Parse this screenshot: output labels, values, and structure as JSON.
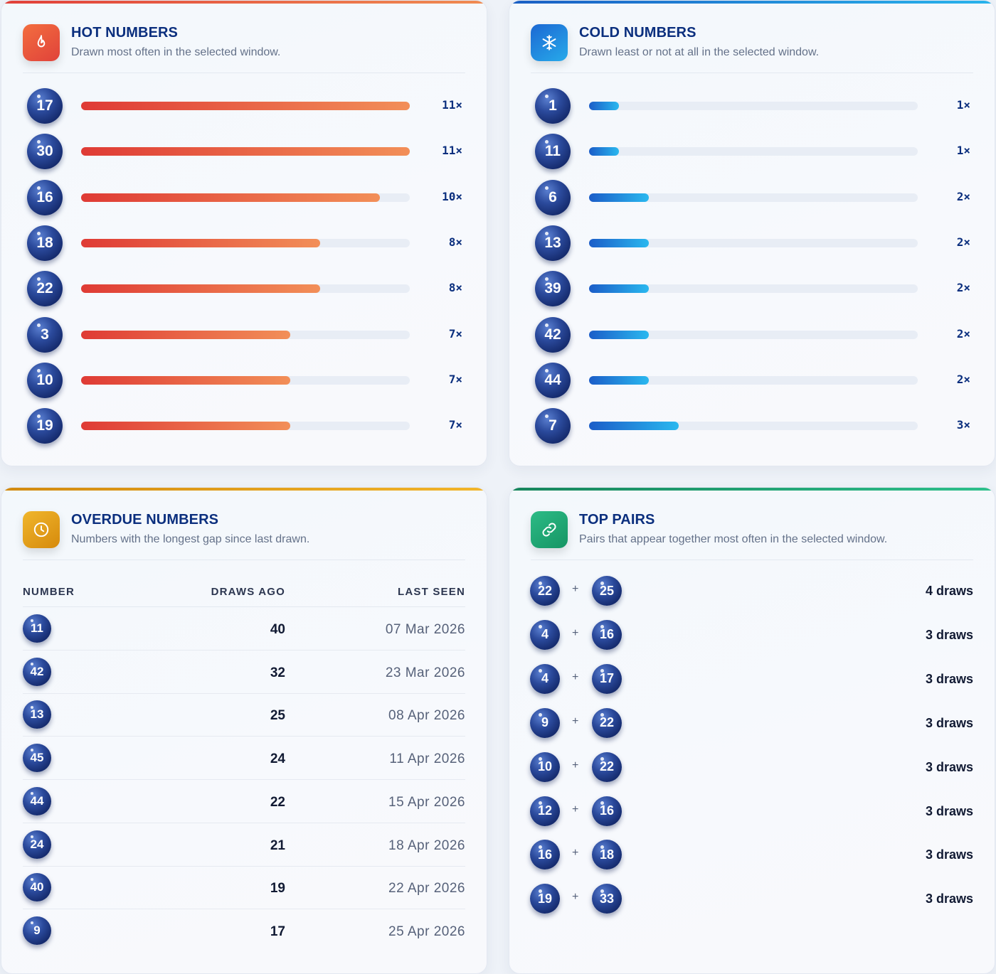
{
  "hot": {
    "title": "HOT NUMBERS",
    "subtitle": "Drawn most often in the selected window.",
    "icon": "flame-icon",
    "accent": "#e2473a",
    "max_count": 11,
    "rows": [
      {
        "number": "17",
        "count": 11,
        "label": "11×"
      },
      {
        "number": "30",
        "count": 11,
        "label": "11×"
      },
      {
        "number": "16",
        "count": 10,
        "label": "10×"
      },
      {
        "number": "18",
        "count": 8,
        "label": "8×"
      },
      {
        "number": "22",
        "count": 8,
        "label": "8×"
      },
      {
        "number": "3",
        "count": 7,
        "label": "7×"
      },
      {
        "number": "10",
        "count": 7,
        "label": "7×"
      },
      {
        "number": "19",
        "count": 7,
        "label": "7×"
      }
    ]
  },
  "cold": {
    "title": "COLD NUMBERS",
    "subtitle": "Drawn least or not at all in the selected window.",
    "icon": "snowflake-icon",
    "accent": "#1f78d8",
    "max_count": 11,
    "rows": [
      {
        "number": "1",
        "count": 1,
        "label": "1×"
      },
      {
        "number": "11",
        "count": 1,
        "label": "1×"
      },
      {
        "number": "6",
        "count": 2,
        "label": "2×"
      },
      {
        "number": "13",
        "count": 2,
        "label": "2×"
      },
      {
        "number": "39",
        "count": 2,
        "label": "2×"
      },
      {
        "number": "42",
        "count": 2,
        "label": "2×"
      },
      {
        "number": "44",
        "count": 2,
        "label": "2×"
      },
      {
        "number": "7",
        "count": 3,
        "label": "3×"
      }
    ]
  },
  "overdue": {
    "title": "OVERDUE NUMBERS",
    "subtitle": "Numbers with the longest gap since last drawn.",
    "icon": "clock-icon",
    "accent": "#e0a11c",
    "columns": [
      "NUMBER",
      "DRAWS AGO",
      "LAST SEEN"
    ],
    "rows": [
      {
        "number": "11",
        "draws_ago": "40",
        "last_seen": "07 Mar 2026"
      },
      {
        "number": "42",
        "draws_ago": "32",
        "last_seen": "23 Mar 2026"
      },
      {
        "number": "13",
        "draws_ago": "25",
        "last_seen": "08 Apr 2026"
      },
      {
        "number": "45",
        "draws_ago": "24",
        "last_seen": "11 Apr 2026"
      },
      {
        "number": "44",
        "draws_ago": "22",
        "last_seen": "15 Apr 2026"
      },
      {
        "number": "24",
        "draws_ago": "21",
        "last_seen": "18 Apr 2026"
      },
      {
        "number": "40",
        "draws_ago": "19",
        "last_seen": "22 Apr 2026"
      },
      {
        "number": "9",
        "draws_ago": "17",
        "last_seen": "25 Apr 2026"
      }
    ]
  },
  "pairs": {
    "title": "TOP PAIRS",
    "subtitle": "Pairs that appear together most often in the selected window.",
    "icon": "link-icon",
    "accent": "#22a874",
    "plus": "+",
    "rows": [
      {
        "a": "22",
        "b": "25",
        "draws": "4 draws"
      },
      {
        "a": "4",
        "b": "16",
        "draws": "3 draws"
      },
      {
        "a": "4",
        "b": "17",
        "draws": "3 draws"
      },
      {
        "a": "9",
        "b": "22",
        "draws": "3 draws"
      },
      {
        "a": "10",
        "b": "22",
        "draws": "3 draws"
      },
      {
        "a": "12",
        "b": "16",
        "draws": "3 draws"
      },
      {
        "a": "16",
        "b": "18",
        "draws": "3 draws"
      },
      {
        "a": "19",
        "b": "33",
        "draws": "3 draws"
      }
    ]
  }
}
